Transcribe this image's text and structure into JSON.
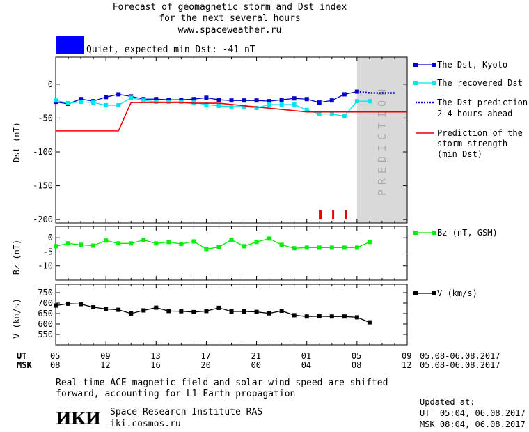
{
  "header": {
    "title_line1": "Forecast of geomagnetic storm and Dst index",
    "title_line2": "for the next several hours",
    "url": "www.spaceweather.ru"
  },
  "status": {
    "text": "Quiet, expected min Dst: -41 nT",
    "color": "#0000ff"
  },
  "prediction_label": "PREDICTION",
  "legend": {
    "dst_kyoto": "The Dst, Kyoto",
    "recovered": "The recovered Dst",
    "prediction_line1": "The Dst prediction",
    "prediction_line2": "2-4 hours ahead",
    "strength_line1": "Prediction of the",
    "strength_line2": "storm strength",
    "strength_line3": "(min Dst)",
    "bz": "Bz (nT, GSM)",
    "v": "V (km/s)"
  },
  "time_axis": {
    "ut_label": "UT",
    "msk_label": "MSK",
    "ut_ticks": [
      "05",
      "09",
      "13",
      "17",
      "21",
      "01",
      "05",
      "09"
    ],
    "msk_ticks": [
      "08",
      "12",
      "16",
      "20",
      "00",
      "04",
      "08",
      "12"
    ],
    "ut_range": "05.08-06.08.2017",
    "msk_range": "05.08-06.08.2017"
  },
  "footer": {
    "note_line1": "Real-time ACE magnetic field and solar wind speed are shifted",
    "note_line2": "forward, accounting for L1-Earth propagation",
    "logo": "ИКИ",
    "institute": "Space Research Institute RAS",
    "site": "iki.cosmos.ru",
    "updated_label": "Updated at:",
    "updated_ut": "UT  05:04, 06.08.2017",
    "updated_msk": "MSK 08:04, 06.08.2017"
  },
  "colors": {
    "dst_kyoto": "#0000cc",
    "recovered": "#00e5ee",
    "prediction": "#0000cc",
    "strength": "#ee0000",
    "bz": "#00ee00",
    "v": "#000000",
    "prediction_zone": "#d9d9d9"
  },
  "chart_data": [
    {
      "type": "line",
      "panel": "dst",
      "ylabel": "Dst (nT)",
      "xlim": [
        0,
        28
      ],
      "ylim": [
        -205,
        40
      ],
      "yticks": [
        0,
        -50,
        -100,
        -150,
        -200
      ],
      "prediction_zone_x": [
        24,
        28
      ],
      "series": [
        {
          "name": "The Dst, Kyoto",
          "x": [
            0,
            1,
            2,
            3,
            4,
            5,
            6,
            7,
            8,
            9,
            10,
            11,
            12,
            13,
            14,
            15,
            16,
            17,
            18,
            19,
            20,
            21,
            22,
            23,
            24
          ],
          "values": [
            -26,
            -29,
            -22,
            -25,
            -19,
            -15,
            -18,
            -22,
            -22,
            -23,
            -23,
            -22,
            -20,
            -23,
            -24,
            -24,
            -24,
            -25,
            -23,
            -21,
            -22,
            -27,
            -24,
            -15,
            -11
          ]
        },
        {
          "name": "The recovered Dst",
          "x": [
            0,
            1,
            2,
            3,
            4,
            5,
            6,
            7,
            8,
            9,
            10,
            11,
            12,
            13,
            14,
            15,
            16,
            17,
            18,
            19,
            20,
            21,
            22,
            23,
            24,
            25
          ],
          "values": [
            -24,
            -28,
            -26,
            -27,
            -31,
            -31,
            -20,
            -24,
            -26,
            -26,
            -26,
            -27,
            -30,
            -32,
            -33,
            -33,
            -35,
            -30,
            -30,
            -30,
            -38,
            -44,
            -44,
            -47,
            -25,
            -25
          ]
        },
        {
          "name": "The Dst prediction 2-4 hours ahead",
          "x": [
            24,
            25,
            26,
            27
          ],
          "values": [
            -11,
            -13,
            -13,
            -13
          ]
        },
        {
          "name": "Prediction of the storm strength (min Dst)",
          "x": [
            -0.5,
            5,
            6,
            10,
            11,
            13,
            20,
            28
          ],
          "values": [
            -69,
            -69,
            -27,
            -27,
            -28,
            -28,
            -41,
            -41
          ]
        }
      ],
      "markers": {
        "color": "#ee0000",
        "x": [
          21.1,
          22.1,
          23.1
        ],
        "height": [
          -200,
          -186
        ]
      }
    },
    {
      "type": "line",
      "panel": "bz",
      "ylabel": "Bz (nT)",
      "xlim": [
        0,
        28
      ],
      "ylim": [
        -15,
        4
      ],
      "yticks": [
        0,
        -5,
        -10
      ],
      "series": [
        {
          "name": "Bz (nT, GSM)",
          "x": [
            0,
            1,
            2,
            3,
            4,
            5,
            6,
            7,
            8,
            9,
            10,
            11,
            12,
            13,
            14,
            15,
            16,
            17,
            18,
            19,
            20,
            21,
            22,
            23,
            24,
            25
          ],
          "values": [
            -3,
            -2,
            -2.5,
            -2.8,
            -1,
            -2,
            -2,
            -0.8,
            -2,
            -1.5,
            -2.2,
            -1.3,
            -4,
            -3.3,
            -0.7,
            -3,
            -1.5,
            -0.3,
            -2.5,
            -3.7,
            -3.5,
            -3.5,
            -3.5,
            -3.5,
            -3.5,
            -1.5
          ]
        }
      ]
    },
    {
      "type": "line",
      "panel": "v",
      "ylabel": "V (km/s)",
      "xlim": [
        0,
        28
      ],
      "ylim": [
        500,
        790
      ],
      "yticks": [
        750,
        700,
        650,
        600,
        550
      ],
      "series": [
        {
          "name": "V (km/s)",
          "x": [
            0,
            1,
            2,
            3,
            4,
            5,
            6,
            7,
            8,
            9,
            10,
            11,
            12,
            13,
            14,
            15,
            16,
            17,
            18,
            19,
            20,
            21,
            22,
            23,
            24,
            25
          ],
          "values": [
            688,
            697,
            695,
            680,
            672,
            668,
            650,
            665,
            678,
            662,
            661,
            657,
            662,
            677,
            660,
            660,
            658,
            651,
            663,
            642,
            636,
            637,
            636,
            636,
            632,
            608
          ]
        }
      ]
    }
  ]
}
